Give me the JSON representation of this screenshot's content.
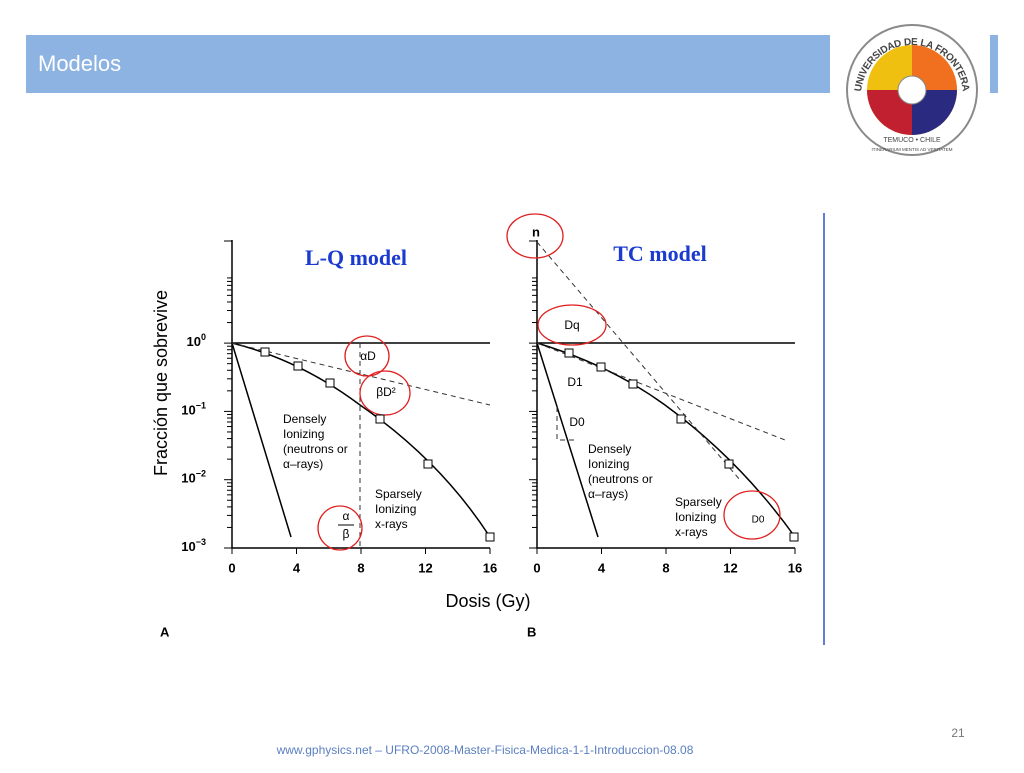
{
  "header": {
    "title": "Modelos"
  },
  "logo": {
    "name": "UNIVERSIDAD DE LA FRONTERA",
    "place": "TEMUCO • CHILE",
    "motto": "ITINERARIUM MENTIS AD VERITATEM"
  },
  "figure": {
    "y_label": "Fracción que sobrevive",
    "x_label": "Dosis (Gy)",
    "x_ticks": [
      "0",
      "4",
      "8",
      "12",
      "16"
    ],
    "y_ticks": [
      {
        "base": "10",
        "exp": "0"
      },
      {
        "base": "10",
        "exp": "−1"
      },
      {
        "base": "10",
        "exp": "−2"
      },
      {
        "base": "10",
        "exp": "−3"
      }
    ],
    "panels": [
      {
        "letter": "A",
        "title": "L-Q model",
        "alpha_d": "αD",
        "beta_d2": "βD²",
        "ratio_top": "α",
        "ratio_bottom": "β",
        "densely": [
          "Densely",
          "Ionizing",
          "(neutrons or",
          "α–rays)"
        ],
        "sparsely": [
          "Sparsely",
          "Ionizing",
          "x-rays"
        ]
      },
      {
        "letter": "B",
        "title": "TC model",
        "n": "n",
        "dq": "Dq",
        "d1": "D1",
        "d0": "D0",
        "d0_small": "D0",
        "densely": [
          "Densely",
          "Ionizing",
          "(neutrons or",
          "α–rays)"
        ],
        "sparsely": [
          "Sparsely",
          "Ionizing",
          "x-rays"
        ]
      }
    ]
  },
  "footer": {
    "source": "www.gphysics.net – UFRO-2008-Master-Fisica-Medica-1-1-Introduccion-08.08",
    "page": "21"
  }
}
